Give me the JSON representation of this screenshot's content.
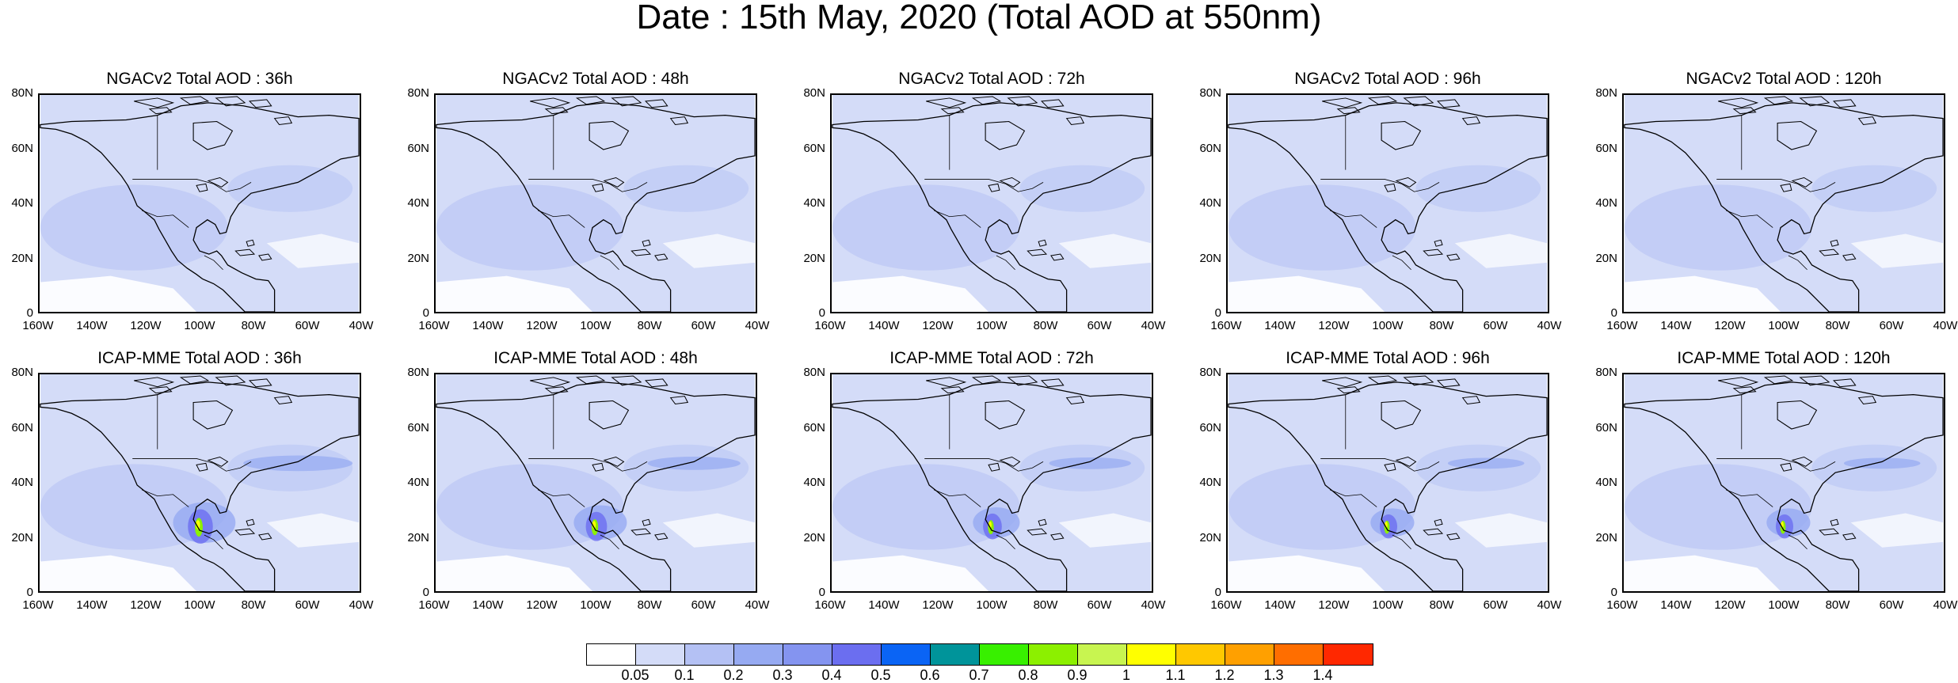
{
  "figure": {
    "title": "Date : 15th May, 2020 (Total AOD at 550nm)"
  },
  "rows": [
    {
      "model": "NGACv2",
      "panels": [
        {
          "title": "NGACv2 Total AOD : 36h",
          "plume": 0.0
        },
        {
          "title": "NGACv2 Total AOD : 48h",
          "plume": 0.0
        },
        {
          "title": "NGACv2 Total AOD : 72h",
          "plume": 0.0
        },
        {
          "title": "NGACv2 Total AOD : 96h",
          "plume": 0.0
        },
        {
          "title": "NGACv2 Total AOD : 120h",
          "plume": 0.0
        }
      ]
    },
    {
      "model": "ICAP-MME",
      "panels": [
        {
          "title": "ICAP-MME Total AOD : 36h",
          "plume": 1.0
        },
        {
          "title": "ICAP-MME Total AOD : 48h",
          "plume": 0.85
        },
        {
          "title": "ICAP-MME Total AOD : 72h",
          "plume": 0.75
        },
        {
          "title": "ICAP-MME Total AOD : 96h",
          "plume": 0.7
        },
        {
          "title": "ICAP-MME Total AOD : 120h",
          "plume": 0.7
        }
      ]
    }
  ],
  "axes": {
    "lat_labels": [
      "80N",
      "60N",
      "40N",
      "20N",
      "0"
    ],
    "lon_labels": [
      "160W",
      "140W",
      "120W",
      "100W",
      "80W",
      "60W",
      "40W"
    ],
    "lat_range": [
      0,
      80
    ],
    "lon_range": [
      -160,
      -40
    ]
  },
  "colorbar": {
    "labels": [
      "0.05",
      "0.1",
      "0.2",
      "0.3",
      "0.4",
      "0.5",
      "0.6",
      "0.7",
      "0.8",
      "0.9",
      "1",
      "1.1",
      "1.2",
      "1.3",
      "1.4"
    ],
    "colors": [
      "#ffffff",
      "#d4dcf8",
      "#b4c1f4",
      "#96aaf2",
      "#8494f0",
      "#6b6ef0",
      "#0a64f5",
      "#00949a",
      "#38f000",
      "#8cf000",
      "#c8f550",
      "#ffff00",
      "#ffc800",
      "#ffa000",
      "#ff6e00",
      "#ff2800"
    ]
  },
  "colors": {
    "background": "#ffffff",
    "aod_low": "#d4dcf8",
    "aod_mid": "#b4c1f4",
    "aod_high": "#96aaf2",
    "coastline": "#000000"
  }
}
